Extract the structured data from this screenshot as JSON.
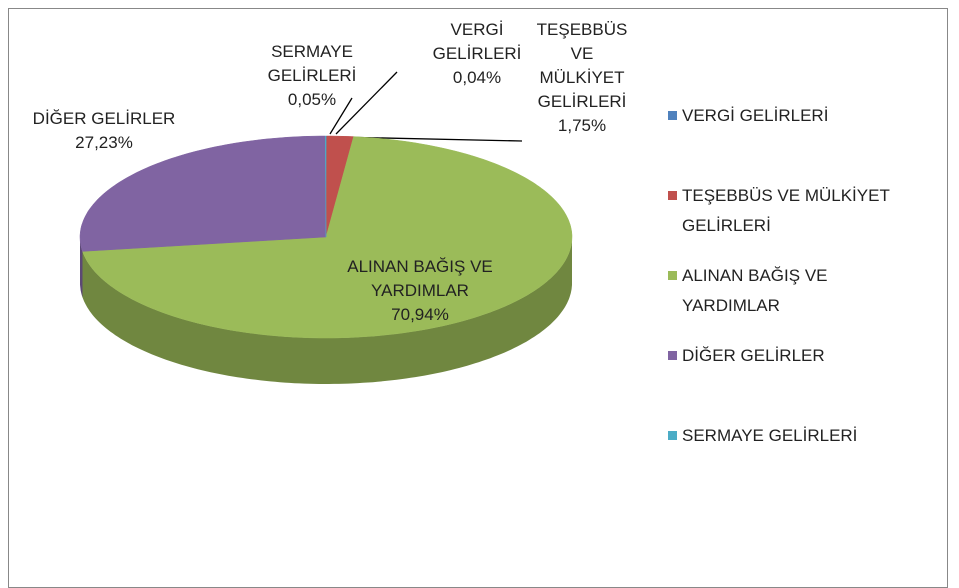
{
  "chart_data": {
    "type": "pie",
    "categories": [
      "VERGİ GELİRLERİ",
      "TEŞEBBÜS VE MÜLKİYET GELİRLERİ",
      "ALINAN BAĞIŞ VE YARDIMLAR",
      "DİĞER GELİRLER",
      "SERMAYE GELİRLERİ"
    ],
    "values": [
      0.04,
      1.75,
      70.94,
      27.23,
      0.05
    ],
    "value_labels": [
      "0,04%",
      "1,75%",
      "70,94%",
      "27,23%",
      "0,05%"
    ],
    "colors": [
      "#4f81bd",
      "#c0504d",
      "#9bbb59",
      "#8064a2",
      "#4bacc6"
    ],
    "legend": "right"
  }
}
